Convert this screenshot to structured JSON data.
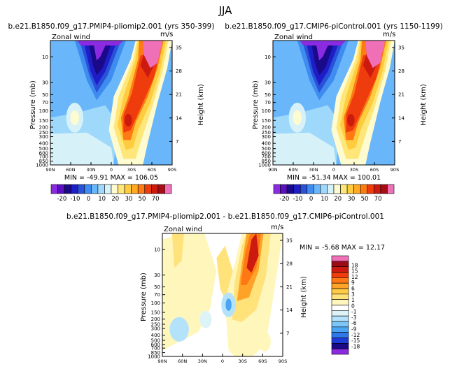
{
  "figure_title": "JJA",
  "colormaps": {
    "abs": [
      "#8a2be2",
      "#5a10c0",
      "#1a0a8a",
      "#1e1ec8",
      "#2a52d8",
      "#3e8cf0",
      "#6ab6fa",
      "#9ed8fb",
      "#d6f2f8",
      "#fffbd0",
      "#ffe678",
      "#ffcc40",
      "#ffaa22",
      "#ff7a14",
      "#ee3c0c",
      "#cc1a0e",
      "#a80c14",
      "#f070b8"
    ],
    "diff": [
      "#8a2be2",
      "#1a0a8a",
      "#1e3cd8",
      "#2e78ea",
      "#4aa6f4",
      "#7cc6f8",
      "#b4e2fa",
      "#dcf4f8",
      "#ffffff",
      "#fff6bc",
      "#ffe27a",
      "#ffca46",
      "#ffa228",
      "#ff7814",
      "#f03c0c",
      "#cc1a0e",
      "#9c0c16",
      "#f070b8"
    ]
  },
  "chart_data": [
    {
      "type": "contour",
      "name": "pliomip2",
      "title": "b.e21.B1850.f09_g17.PMIP4-pliomip2.001  (yrs  350-399)",
      "left_label": "Zonal wind",
      "units": "m/s",
      "ylabel": "Pressure (mb)",
      "ylabel_right": "Height (km)",
      "x_ticks": [
        "90N",
        "60N",
        "30N",
        "0",
        "30S",
        "60S",
        "90S"
      ],
      "y_ticks": [
        10,
        30,
        50,
        70,
        100,
        150,
        200,
        250,
        300,
        400,
        500,
        600,
        700,
        850,
        1000
      ],
      "y_right_ticks": [
        35,
        28,
        21,
        14,
        7
      ],
      "min_max_text": "MIN = -49.91   MAX = 106.05",
      "min": -49.91,
      "max": 106.05,
      "colorbar_labels": [
        "-20",
        "-10",
        "0",
        "10",
        "20",
        "30",
        "50",
        "70"
      ],
      "colorbar_levels": [
        -20,
        -15,
        -10,
        -5,
        0,
        5,
        10,
        15,
        20,
        25,
        30,
        35,
        40,
        50,
        60,
        70
      ]
    },
    {
      "type": "contour",
      "name": "picontrol",
      "title": "b.e21.B1850.f09_g17.CMIP6-piControl.001  (yrs  1150-1199)",
      "left_label": "Zonal wind",
      "units": "m/s",
      "ylabel": "Pressure (mb)",
      "ylabel_right": "Height (km)",
      "x_ticks": [
        "90N",
        "60N",
        "30N",
        "0",
        "30S",
        "60S",
        "90S"
      ],
      "y_ticks": [
        10,
        30,
        50,
        70,
        100,
        150,
        200,
        250,
        300,
        400,
        500,
        600,
        700,
        850,
        1000
      ],
      "y_right_ticks": [
        35,
        28,
        21,
        14,
        7
      ],
      "min_max_text": "MIN = -51.34   MAX = 100.01",
      "min": -51.34,
      "max": 100.01,
      "colorbar_labels": [
        "-20",
        "-10",
        "0",
        "10",
        "20",
        "30",
        "50",
        "70"
      ],
      "colorbar_levels": [
        -20,
        -15,
        -10,
        -5,
        0,
        5,
        10,
        15,
        20,
        25,
        30,
        35,
        40,
        50,
        60,
        70
      ]
    },
    {
      "type": "contour",
      "name": "difference",
      "title": "b.e21.B1850.f09_g17.PMIP4-pliomip2.001  -  b.e21.B1850.f09_g17.CMIP6-piControl.001",
      "left_label": "Zonal wind",
      "units": "m/s",
      "ylabel": "Pressure (mb)",
      "ylabel_right": "Height (km)",
      "x_ticks": [
        "90N",
        "60N",
        "30N",
        "0",
        "30S",
        "60S",
        "90S"
      ],
      "y_ticks": [
        10,
        30,
        50,
        70,
        100,
        150,
        200,
        250,
        300,
        400,
        500,
        600,
        700,
        850,
        1000
      ],
      "y_right_ticks": [
        35,
        28,
        21,
        14,
        7
      ],
      "min_max_text": "MIN =   -5.68    MAX =   12.17",
      "min": -5.68,
      "max": 12.17,
      "colorbar_labels": [
        "18",
        "15",
        "12",
        "9",
        "6",
        "3",
        "1",
        "0",
        "-1",
        "-3",
        "-6",
        "-9",
        "-12",
        "-15",
        "-18"
      ],
      "colorbar_levels": [
        -18,
        -15,
        -12,
        -9,
        -6,
        -3,
        -1,
        0,
        1,
        3,
        6,
        9,
        12,
        15,
        18
      ]
    }
  ]
}
